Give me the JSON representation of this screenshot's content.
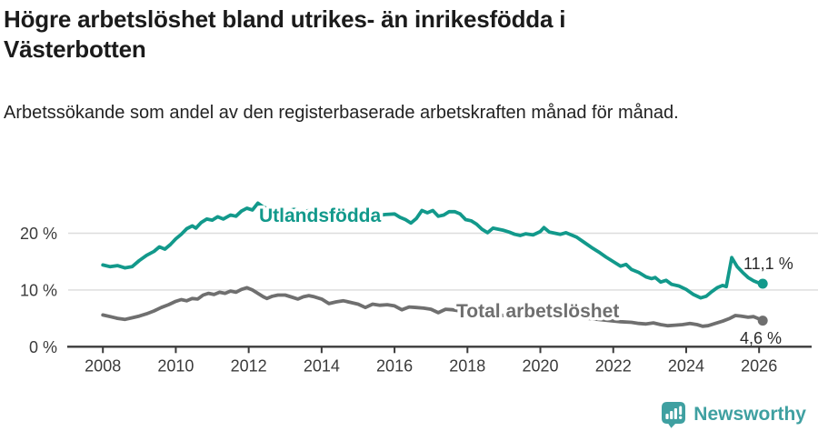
{
  "header": {
    "title": "Högre arbetslöshet bland utrikes- än inrikesfödda i Västerbotten",
    "subtitle": "Arbetssökande som andel av den registerbaserade arbetskraften månad för månad."
  },
  "footer": {
    "brand": "Newsworthy"
  },
  "colors": {
    "series_foreign_born": "#12998b",
    "series_total": "#6f6f6f",
    "brand_teal": "#3fa0a1",
    "axis": "#3b3b3b",
    "gridline": "#dcdcdc"
  },
  "chart_data": {
    "type": "line",
    "title": "Högre arbetslöshet bland utrikes- än inrikesfödda i Västerbotten",
    "subtitle": "Arbetssökande som andel av den registerbaserade arbetskraften månad för månad.",
    "grid": "horizontal",
    "legend_position": "inline-labels",
    "x_axis": {
      "ticks": [
        2008,
        2010,
        2012,
        2014,
        2016,
        2018,
        2020,
        2022,
        2024,
        2026
      ],
      "range": [
        2007.0,
        2026.6
      ]
    },
    "y_axis": {
      "ticks": [
        {
          "value": 0,
          "label": "0 %"
        },
        {
          "value": 10,
          "label": "10 %"
        },
        {
          "value": 20,
          "label": "20 %"
        }
      ],
      "range": [
        0,
        26.5
      ]
    },
    "series": [
      {
        "name": "Utlandsfödda",
        "color": "#12998b",
        "end_label": "11,1 %",
        "end_value": 11.1,
        "points": [
          [
            2008.0,
            14.4
          ],
          [
            2008.2,
            14.1
          ],
          [
            2008.4,
            14.3
          ],
          [
            2008.6,
            13.9
          ],
          [
            2008.8,
            14.1
          ],
          [
            2009.0,
            15.2
          ],
          [
            2009.2,
            16.1
          ],
          [
            2009.4,
            16.8
          ],
          [
            2009.55,
            17.6
          ],
          [
            2009.7,
            17.2
          ],
          [
            2009.85,
            18.0
          ],
          [
            2010.0,
            19.0
          ],
          [
            2010.15,
            19.8
          ],
          [
            2010.3,
            20.8
          ],
          [
            2010.45,
            21.3
          ],
          [
            2010.55,
            20.9
          ],
          [
            2010.7,
            21.9
          ],
          [
            2010.85,
            22.5
          ],
          [
            2011.0,
            22.3
          ],
          [
            2011.15,
            22.9
          ],
          [
            2011.3,
            22.5
          ],
          [
            2011.5,
            23.2
          ],
          [
            2011.65,
            23.0
          ],
          [
            2011.8,
            23.9
          ],
          [
            2011.95,
            24.4
          ],
          [
            2012.1,
            24.1
          ],
          [
            2012.25,
            25.3
          ],
          [
            2012.4,
            24.6
          ],
          [
            2012.6,
            24.2
          ],
          [
            2012.8,
            24.5
          ],
          [
            2013.0,
            23.9
          ],
          [
            2013.25,
            24.2
          ],
          [
            2013.5,
            23.8
          ],
          [
            2013.75,
            24.1
          ],
          [
            2014.0,
            23.8
          ],
          [
            2014.25,
            23.5
          ],
          [
            2014.5,
            23.8
          ],
          [
            2014.75,
            23.4
          ],
          [
            2015.0,
            23.2
          ],
          [
            2015.25,
            23.5
          ],
          [
            2015.5,
            23.1
          ],
          [
            2015.75,
            23.3
          ],
          [
            2016.0,
            23.4
          ],
          [
            2016.15,
            22.8
          ],
          [
            2016.3,
            22.4
          ],
          [
            2016.45,
            21.8
          ],
          [
            2016.6,
            22.6
          ],
          [
            2016.75,
            24.0
          ],
          [
            2016.9,
            23.6
          ],
          [
            2017.05,
            24.0
          ],
          [
            2017.2,
            23.0
          ],
          [
            2017.35,
            23.2
          ],
          [
            2017.5,
            23.8
          ],
          [
            2017.65,
            23.8
          ],
          [
            2017.8,
            23.4
          ],
          [
            2017.95,
            22.4
          ],
          [
            2018.1,
            22.2
          ],
          [
            2018.25,
            21.6
          ],
          [
            2018.4,
            20.7
          ],
          [
            2018.55,
            20.1
          ],
          [
            2018.7,
            20.9
          ],
          [
            2018.85,
            20.7
          ],
          [
            2019.0,
            20.5
          ],
          [
            2019.15,
            20.2
          ],
          [
            2019.3,
            19.8
          ],
          [
            2019.45,
            19.6
          ],
          [
            2019.6,
            19.9
          ],
          [
            2019.8,
            19.7
          ],
          [
            2020.0,
            20.3
          ],
          [
            2020.1,
            21.0
          ],
          [
            2020.25,
            20.2
          ],
          [
            2020.4,
            20.0
          ],
          [
            2020.55,
            19.8
          ],
          [
            2020.7,
            20.1
          ],
          [
            2020.85,
            19.7
          ],
          [
            2021.0,
            19.3
          ],
          [
            2021.2,
            18.4
          ],
          [
            2021.4,
            17.5
          ],
          [
            2021.6,
            16.7
          ],
          [
            2021.8,
            15.8
          ],
          [
            2022.0,
            15.0
          ],
          [
            2022.2,
            14.2
          ],
          [
            2022.35,
            14.5
          ],
          [
            2022.5,
            13.6
          ],
          [
            2022.7,
            13.1
          ],
          [
            2022.9,
            12.3
          ],
          [
            2023.05,
            12.0
          ],
          [
            2023.15,
            12.2
          ],
          [
            2023.3,
            11.4
          ],
          [
            2023.45,
            11.7
          ],
          [
            2023.6,
            11.0
          ],
          [
            2023.8,
            10.7
          ],
          [
            2024.0,
            10.1
          ],
          [
            2024.2,
            9.2
          ],
          [
            2024.4,
            8.6
          ],
          [
            2024.55,
            8.9
          ],
          [
            2024.7,
            9.7
          ],
          [
            2024.85,
            10.4
          ],
          [
            2025.0,
            10.8
          ],
          [
            2025.1,
            10.6
          ],
          [
            2025.25,
            15.7
          ],
          [
            2025.4,
            14.1
          ],
          [
            2025.55,
            13.1
          ],
          [
            2025.7,
            12.2
          ],
          [
            2025.85,
            11.6
          ],
          [
            2026.0,
            11.2
          ],
          [
            2026.1,
            11.1
          ]
        ]
      },
      {
        "name": "Total arbetslöshet",
        "color": "#6f6f6f",
        "end_label": "4,6 %",
        "end_value": 4.6,
        "points": [
          [
            2008.0,
            5.6
          ],
          [
            2008.2,
            5.3
          ],
          [
            2008.4,
            5.0
          ],
          [
            2008.6,
            4.8
          ],
          [
            2008.8,
            5.1
          ],
          [
            2009.0,
            5.4
          ],
          [
            2009.2,
            5.8
          ],
          [
            2009.4,
            6.3
          ],
          [
            2009.6,
            6.9
          ],
          [
            2009.8,
            7.4
          ],
          [
            2010.0,
            8.0
          ],
          [
            2010.15,
            8.3
          ],
          [
            2010.3,
            8.1
          ],
          [
            2010.45,
            8.5
          ],
          [
            2010.6,
            8.4
          ],
          [
            2010.75,
            9.1
          ],
          [
            2010.9,
            9.4
          ],
          [
            2011.05,
            9.2
          ],
          [
            2011.2,
            9.6
          ],
          [
            2011.35,
            9.4
          ],
          [
            2011.5,
            9.8
          ],
          [
            2011.65,
            9.6
          ],
          [
            2011.8,
            10.1
          ],
          [
            2011.95,
            10.4
          ],
          [
            2012.1,
            10.0
          ],
          [
            2012.25,
            9.4
          ],
          [
            2012.4,
            8.8
          ],
          [
            2012.5,
            8.5
          ],
          [
            2012.65,
            8.9
          ],
          [
            2012.8,
            9.1
          ],
          [
            2013.0,
            9.1
          ],
          [
            2013.2,
            8.7
          ],
          [
            2013.35,
            8.4
          ],
          [
            2013.5,
            8.8
          ],
          [
            2013.65,
            9.0
          ],
          [
            2013.8,
            8.8
          ],
          [
            2014.0,
            8.4
          ],
          [
            2014.2,
            7.6
          ],
          [
            2014.4,
            7.9
          ],
          [
            2014.6,
            8.1
          ],
          [
            2014.8,
            7.8
          ],
          [
            2015.0,
            7.5
          ],
          [
            2015.2,
            6.9
          ],
          [
            2015.4,
            7.5
          ],
          [
            2015.6,
            7.3
          ],
          [
            2015.8,
            7.4
          ],
          [
            2016.0,
            7.2
          ],
          [
            2016.2,
            6.5
          ],
          [
            2016.4,
            7.0
          ],
          [
            2016.6,
            6.9
          ],
          [
            2016.8,
            6.8
          ],
          [
            2017.0,
            6.6
          ],
          [
            2017.2,
            6.0
          ],
          [
            2017.4,
            6.6
          ],
          [
            2017.6,
            6.5
          ],
          [
            2017.8,
            6.3
          ],
          [
            2018.0,
            6.1
          ],
          [
            2018.3,
            5.8
          ],
          [
            2018.6,
            5.9
          ],
          [
            2019.0,
            5.5
          ],
          [
            2019.3,
            5.2
          ],
          [
            2019.6,
            5.3
          ],
          [
            2020.0,
            5.8
          ],
          [
            2020.25,
            6.1
          ],
          [
            2020.5,
            5.9
          ],
          [
            2020.75,
            5.6
          ],
          [
            2021.0,
            5.3
          ],
          [
            2021.3,
            5.0
          ],
          [
            2021.6,
            4.8
          ],
          [
            2021.9,
            4.6
          ],
          [
            2022.2,
            4.4
          ],
          [
            2022.5,
            4.3
          ],
          [
            2022.7,
            4.1
          ],
          [
            2022.9,
            4.0
          ],
          [
            2023.1,
            4.2
          ],
          [
            2023.3,
            3.9
          ],
          [
            2023.5,
            3.7
          ],
          [
            2023.7,
            3.8
          ],
          [
            2023.9,
            3.9
          ],
          [
            2024.1,
            4.1
          ],
          [
            2024.3,
            3.9
          ],
          [
            2024.45,
            3.6
          ],
          [
            2024.6,
            3.7
          ],
          [
            2024.8,
            4.1
          ],
          [
            2025.0,
            4.5
          ],
          [
            2025.2,
            5.0
          ],
          [
            2025.35,
            5.5
          ],
          [
            2025.5,
            5.4
          ],
          [
            2025.7,
            5.2
          ],
          [
            2025.85,
            5.3
          ],
          [
            2026.0,
            4.9
          ],
          [
            2026.1,
            4.6
          ]
        ]
      }
    ]
  }
}
